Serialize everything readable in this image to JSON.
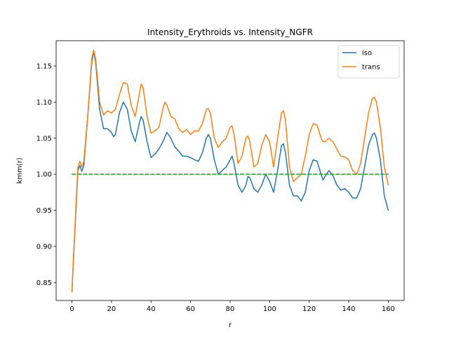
{
  "chart_data": {
    "type": "line",
    "title": "Intensity_Erythroids vs. Intensity_NGFR",
    "xlabel": "r",
    "ylabel": "kmm(r)",
    "xlim": [
      -8,
      168
    ],
    "ylim": [
      0.825,
      1.185
    ],
    "xticks": [
      0,
      20,
      40,
      60,
      80,
      100,
      120,
      140,
      160
    ],
    "yticks": [
      0.85,
      0.9,
      0.95,
      1.0,
      1.05,
      1.1,
      1.15
    ],
    "ytick_labels": [
      "0.85",
      "0.90",
      "0.95",
      "1.00",
      "1.05",
      "1.10",
      "1.15"
    ],
    "grid": false,
    "legend_position": "top-right",
    "series": [
      {
        "name": "iso",
        "color": "#1f77b4",
        "style": "solid",
        "points": [
          [
            0,
            0.837
          ],
          [
            2,
            0.95
          ],
          [
            3,
            1.005
          ],
          [
            4,
            1.012
          ],
          [
            5,
            1.004
          ],
          [
            6,
            1.012
          ],
          [
            8,
            1.08
          ],
          [
            10,
            1.155
          ],
          [
            11,
            1.17
          ],
          [
            12,
            1.155
          ],
          [
            14,
            1.09
          ],
          [
            16,
            1.063
          ],
          [
            18,
            1.063
          ],
          [
            20,
            1.058
          ],
          [
            21,
            1.052
          ],
          [
            22,
            1.055
          ],
          [
            24,
            1.085
          ],
          [
            26,
            1.1
          ],
          [
            28,
            1.09
          ],
          [
            30,
            1.06
          ],
          [
            32,
            1.045
          ],
          [
            34,
            1.07
          ],
          [
            35,
            1.08
          ],
          [
            36,
            1.075
          ],
          [
            38,
            1.045
          ],
          [
            40,
            1.023
          ],
          [
            42,
            1.028
          ],
          [
            44,
            1.035
          ],
          [
            46,
            1.045
          ],
          [
            48,
            1.058
          ],
          [
            50,
            1.05
          ],
          [
            52,
            1.038
          ],
          [
            54,
            1.032
          ],
          [
            56,
            1.025
          ],
          [
            58,
            1.025
          ],
          [
            60,
            1.023
          ],
          [
            62,
            1.02
          ],
          [
            64,
            1.018
          ],
          [
            66,
            1.03
          ],
          [
            68,
            1.05
          ],
          [
            69,
            1.055
          ],
          [
            70,
            1.05
          ],
          [
            72,
            1.02
          ],
          [
            74,
            1.0
          ],
          [
            76,
            1.005
          ],
          [
            78,
            1.01
          ],
          [
            80,
            1.02
          ],
          [
            81,
            1.025
          ],
          [
            82,
            1.015
          ],
          [
            84,
            0.985
          ],
          [
            86,
            0.975
          ],
          [
            88,
            0.985
          ],
          [
            89,
            0.997
          ],
          [
            90,
            0.995
          ],
          [
            92,
            0.98
          ],
          [
            94,
            0.975
          ],
          [
            96,
            0.985
          ],
          [
            98,
            1.0
          ],
          [
            100,
            0.99
          ],
          [
            102,
            0.975
          ],
          [
            104,
            1.005
          ],
          [
            106,
            1.04
          ],
          [
            107,
            1.042
          ],
          [
            108,
            1.03
          ],
          [
            110,
            0.985
          ],
          [
            112,
            0.97
          ],
          [
            114,
            0.97
          ],
          [
            116,
            0.963
          ],
          [
            118,
            0.975
          ],
          [
            120,
            1.005
          ],
          [
            122,
            1.02
          ],
          [
            124,
            1.018
          ],
          [
            126,
            1.0
          ],
          [
            127,
            0.992
          ],
          [
            128,
            0.997
          ],
          [
            130,
            1.005
          ],
          [
            132,
            0.998
          ],
          [
            134,
            0.985
          ],
          [
            136,
            0.978
          ],
          [
            138,
            0.98
          ],
          [
            140,
            0.975
          ],
          [
            142,
            0.967
          ],
          [
            144,
            0.967
          ],
          [
            146,
            0.98
          ],
          [
            148,
            1.01
          ],
          [
            150,
            1.04
          ],
          [
            152,
            1.055
          ],
          [
            153,
            1.057
          ],
          [
            154,
            1.05
          ],
          [
            156,
            1.02
          ],
          [
            158,
            0.97
          ],
          [
            160,
            0.95
          ]
        ]
      },
      {
        "name": "trans",
        "color": "#ff7f0e",
        "style": "solid",
        "points": [
          [
            0,
            0.838
          ],
          [
            2,
            0.955
          ],
          [
            3,
            1.01
          ],
          [
            4,
            1.018
          ],
          [
            5,
            1.01
          ],
          [
            6,
            1.018
          ],
          [
            8,
            1.08
          ],
          [
            10,
            1.16
          ],
          [
            11,
            1.172
          ],
          [
            12,
            1.16
          ],
          [
            14,
            1.1
          ],
          [
            16,
            1.082
          ],
          [
            18,
            1.088
          ],
          [
            20,
            1.085
          ],
          [
            22,
            1.09
          ],
          [
            24,
            1.11
          ],
          [
            26,
            1.127
          ],
          [
            28,
            1.125
          ],
          [
            30,
            1.095
          ],
          [
            32,
            1.08
          ],
          [
            34,
            1.11
          ],
          [
            35,
            1.125
          ],
          [
            36,
            1.12
          ],
          [
            38,
            1.08
          ],
          [
            40,
            1.057
          ],
          [
            42,
            1.06
          ],
          [
            44,
            1.065
          ],
          [
            46,
            1.09
          ],
          [
            47,
            1.1
          ],
          [
            48,
            1.096
          ],
          [
            50,
            1.08
          ],
          [
            52,
            1.077
          ],
          [
            54,
            1.063
          ],
          [
            56,
            1.058
          ],
          [
            58,
            1.062
          ],
          [
            60,
            1.055
          ],
          [
            62,
            1.06
          ],
          [
            64,
            1.06
          ],
          [
            66,
            1.07
          ],
          [
            68,
            1.09
          ],
          [
            69,
            1.091
          ],
          [
            70,
            1.085
          ],
          [
            72,
            1.05
          ],
          [
            74,
            1.037
          ],
          [
            76,
            1.045
          ],
          [
            78,
            1.05
          ],
          [
            80,
            1.065
          ],
          [
            81,
            1.067
          ],
          [
            82,
            1.055
          ],
          [
            84,
            1.015
          ],
          [
            86,
            1.025
          ],
          [
            88,
            1.05
          ],
          [
            89,
            1.053
          ],
          [
            90,
            1.045
          ],
          [
            92,
            1.01
          ],
          [
            94,
            1.015
          ],
          [
            96,
            1.04
          ],
          [
            98,
            1.055
          ],
          [
            100,
            1.045
          ],
          [
            102,
            1.01
          ],
          [
            104,
            1.05
          ],
          [
            106,
            1.085
          ],
          [
            107,
            1.088
          ],
          [
            108,
            1.075
          ],
          [
            110,
            1.01
          ],
          [
            112,
            0.99
          ],
          [
            114,
            0.995
          ],
          [
            116,
            1.0
          ],
          [
            118,
            1.025
          ],
          [
            120,
            1.055
          ],
          [
            122,
            1.07
          ],
          [
            124,
            1.068
          ],
          [
            126,
            1.05
          ],
          [
            127,
            1.045
          ],
          [
            128,
            1.045
          ],
          [
            130,
            1.05
          ],
          [
            132,
            1.045
          ],
          [
            134,
            1.035
          ],
          [
            136,
            1.025
          ],
          [
            138,
            1.024
          ],
          [
            140,
            1.02
          ],
          [
            142,
            1.005
          ],
          [
            144,
            1.0
          ],
          [
            146,
            1.015
          ],
          [
            148,
            1.05
          ],
          [
            150,
            1.085
          ],
          [
            152,
            1.105
          ],
          [
            153,
            1.107
          ],
          [
            154,
            1.1
          ],
          [
            156,
            1.065
          ],
          [
            158,
            1.01
          ],
          [
            160,
            0.985
          ]
        ]
      },
      {
        "name": "",
        "color": "#2ca02c",
        "style": "dashed",
        "points": [
          [
            0,
            1.0
          ],
          [
            160,
            1.0
          ]
        ]
      }
    ]
  }
}
